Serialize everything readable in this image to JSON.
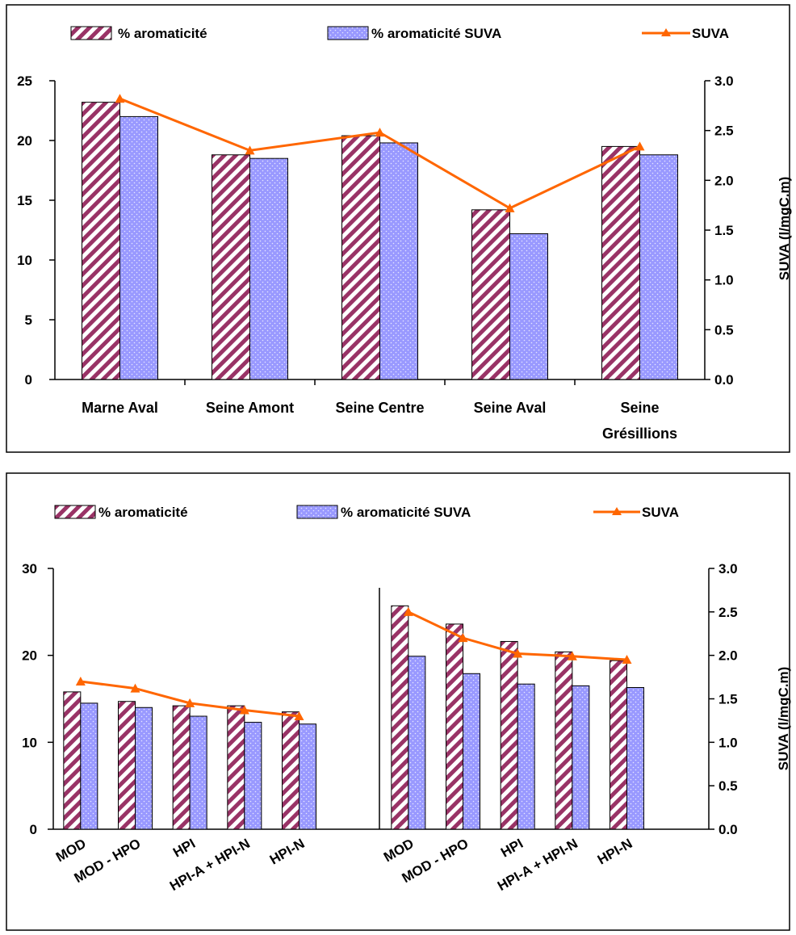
{
  "chart_data": [
    {
      "type": "bar",
      "categories": [
        "Marne Aval",
        "Seine Amont",
        "Seine Centre",
        "Seine Aval",
        "Seine Grésillions"
      ],
      "series": [
        {
          "name": "% aromaticité",
          "values": [
            23.2,
            18.8,
            20.4,
            14.2,
            19.5
          ],
          "axis": "left",
          "color": "#993366",
          "pattern": "diagonal-stripes"
        },
        {
          "name": "% aromaticité SUVA",
          "values": [
            22.0,
            18.5,
            19.8,
            12.2,
            18.8
          ],
          "axis": "left",
          "color": "#9999ff",
          "pattern": "dots"
        },
        {
          "name": "SUVA",
          "values": [
            2.82,
            2.3,
            2.48,
            1.72,
            2.34
          ],
          "axis": "right",
          "type": "line",
          "color": "#ff6600",
          "marker": "triangle"
        }
      ],
      "y_left": {
        "min": 0,
        "max": 25,
        "ticks": [
          "0",
          "5",
          "10",
          "15",
          "20",
          "25"
        ]
      },
      "y_right": {
        "min": 0,
        "max": 3,
        "ticks": [
          "0.0",
          "0.5",
          "1.0",
          "1.5",
          "2.0",
          "2.5",
          "3.0"
        ],
        "label": "SUVA (l/mgC.m)"
      },
      "legend": [
        "% aromaticité",
        "% aromaticité SUVA",
        "SUVA"
      ],
      "legend_position": "top",
      "grid": false
    },
    {
      "type": "bar",
      "groups": [
        {
          "categories": [
            "MOD",
            "MOD - HPO",
            "HPI",
            "HPI-A + HPI-N",
            "HPI-N"
          ],
          "series": [
            {
              "name": "% aromaticité",
              "values": [
                15.8,
                14.7,
                14.2,
                14.2,
                13.5
              ]
            },
            {
              "name": "% aromaticité SUVA",
              "values": [
                14.5,
                14.0,
                13.0,
                12.3,
                12.1
              ]
            },
            {
              "name": "SUVA",
              "values": [
                1.7,
                1.62,
                1.45,
                1.37,
                1.3
              ]
            }
          ]
        },
        {
          "categories": [
            "MOD",
            "MOD - HPO",
            "HPI",
            "HPI-A + HPI-N",
            "HPI-N"
          ],
          "series": [
            {
              "name": "% aromaticité",
              "values": [
                25.7,
                23.6,
                21.6,
                20.4,
                19.4
              ]
            },
            {
              "name": "% aromaticité SUVA",
              "values": [
                19.9,
                17.9,
                16.7,
                16.5,
                16.3
              ]
            },
            {
              "name": "SUVA",
              "values": [
                2.5,
                2.2,
                2.02,
                1.99,
                1.95
              ]
            }
          ]
        }
      ],
      "y_left": {
        "min": 0,
        "max": 30,
        "ticks": [
          "0",
          "10",
          "20",
          "30"
        ]
      },
      "y_right": {
        "min": 0,
        "max": 3,
        "ticks": [
          "0.0",
          "0.5",
          "1.0",
          "1.5",
          "2.0",
          "2.5",
          "3.0"
        ],
        "label": "SUVA (l/mgC.m)"
      },
      "legend": [
        "% aromaticité",
        "% aromaticité SUVA",
        "SUVA"
      ],
      "legend_position": "top",
      "grid": false
    }
  ]
}
